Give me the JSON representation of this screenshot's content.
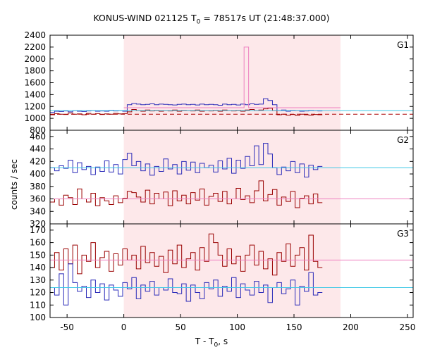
{
  "chart_data": {
    "type": "line",
    "title": {
      "prefix": "KONUS-WIND 021125 T",
      "subscript": "0",
      "suffix": " = 78517s UT (21:48:37.000)"
    },
    "xlabel": {
      "prefix": "T - T",
      "subscript": "0",
      "suffix": ", s"
    },
    "ylabel": "counts / sec",
    "xlim": [
      -65,
      255
    ],
    "x_ticks": [
      -50,
      0,
      50,
      100,
      150,
      200,
      250
    ],
    "x_tick_labels": [
      "-50",
      "0",
      "50",
      "100",
      "150",
      "200",
      "250"
    ],
    "shaded_interval": [
      0,
      191
    ],
    "bin_width": 4,
    "bin_start": -65,
    "colors": {
      "shade": "#fde8ea",
      "blue": "#2a2ab8",
      "darkred": "#990000",
      "cyan": "#3fc8e6",
      "pink": "#ee80c0",
      "darkred_dashed": "#aa0000"
    },
    "panels": [
      {
        "label": "G1",
        "ylim": [
          800,
          2400
        ],
        "y_ticks": [
          800,
          1000,
          1200,
          1400,
          1600,
          1800,
          2000,
          2200,
          2400
        ],
        "y_tick_labels": [
          "800",
          "1000",
          "1200",
          "1400",
          "1600",
          "1800",
          "2000",
          "2200",
          "2400"
        ],
        "series": [
          {
            "name": "",
            "color": "blue",
            "style": "step",
            "values": [
              1100,
              1120,
              1115,
              1125,
              1110,
              1130,
              1120,
              1115,
              1125,
              1130,
              1120,
              1125,
              1120,
              1135,
              1125,
              1130,
              1120,
              1230,
              1250,
              1240,
              1230,
              1235,
              1245,
              1230,
              1240,
              1235,
              1230,
              1225,
              1235,
              1240,
              1230,
              1235,
              1225,
              1240,
              1230,
              1235,
              1230,
              1220,
              1240,
              1230,
              1235,
              1225,
              1240,
              1230,
              1245,
              1235,
              1240,
              1330,
              1300,
              1230,
              1130,
              1140,
              1120,
              1135,
              1130,
              1120,
              1125,
              1135,
              1130,
              1125
            ]
          },
          {
            "name": "",
            "color": "darkred",
            "style": "step",
            "values": [
              1060,
              1080,
              1070,
              1065,
              1090,
              1070,
              1075,
              1060,
              1085,
              1070,
              1080,
              1065,
              1075,
              1070,
              1085,
              1075,
              1080,
              1110,
              1150,
              1130,
              1120,
              1140,
              1125,
              1135,
              1120,
              1130,
              1125,
              1140,
              1120,
              1135,
              1130,
              1125,
              1140,
              1120,
              1130,
              1125,
              1135,
              1120,
              1140,
              1130,
              1125,
              1135,
              1120,
              1140,
              1150,
              1130,
              1140,
              1160,
              1170,
              1130,
              1060,
              1070,
              1055,
              1065,
              1050,
              1070,
              1060,
              1055,
              1065,
              1060
            ]
          },
          {
            "name": "",
            "color": "cyan",
            "style": "line",
            "segments": [
              {
                "x": [
                  -65,
                  255
                ],
                "y": [
                  1130,
                  1130
                ]
              }
            ]
          },
          {
            "name": "",
            "color": "darkred_dashed",
            "style": "dashed",
            "segments": [
              {
                "x": [
                  -65,
                  255
                ],
                "y": [
                  1070,
                  1070
                ]
              }
            ]
          },
          {
            "name": "",
            "color": "pink",
            "style": "line",
            "segments": [
              {
                "x": [
                  0,
                  106,
                  106,
                  110,
                  110,
                  191
                ],
                "y": [
                  1180,
                  1180,
                  2200,
                  2200,
                  1180,
                  1180
                ]
              }
            ]
          }
        ]
      },
      {
        "label": "G2",
        "ylim": [
          320,
          470
        ],
        "y_ticks": [
          320,
          340,
          360,
          380,
          400,
          420,
          440,
          460
        ],
        "y_tick_labels": [
          "320",
          "340",
          "360",
          "380",
          "400",
          "420",
          "440",
          "460"
        ],
        "series": [
          {
            "name": "",
            "color": "blue",
            "style": "step",
            "values": [
              410,
              405,
              413,
              409,
              422,
              402,
              418,
              407,
              412,
              399,
              411,
              404,
              421,
              403,
              415,
              400,
              423,
              433,
              413,
              420,
              405,
              416,
              398,
              412,
              404,
              424,
              408,
              415,
              400,
              420,
              406,
              419,
              402,
              417,
              410,
              414,
              403,
              421,
              408,
              425,
              401,
              422,
              409,
              428,
              413,
              445,
              415,
              449,
              432,
              410,
              399,
              411,
              405,
              420,
              402,
              416,
              395,
              414,
              407,
              412
            ]
          },
          {
            "name": "",
            "color": "darkred",
            "style": "step",
            "values": [
              355,
              360,
              350,
              366,
              362,
              351,
              376,
              360,
              355,
              369,
              349,
              362,
              357,
              351,
              365,
              354,
              361,
              372,
              370,
              363,
              355,
              374,
              352,
              369,
              360,
              371,
              349,
              373,
              357,
              366,
              352,
              370,
              358,
              376,
              350,
              364,
              369,
              356,
              372,
              352,
              360,
              377,
              359,
              365,
              354,
              373,
              389,
              357,
              367,
              375,
              350,
              363,
              356,
              372,
              346,
              361,
              365,
              352,
              368,
              354
            ]
          },
          {
            "name": "",
            "color": "cyan",
            "style": "line",
            "segments": [
              {
                "x": [
                  -65,
                  255
                ],
                "y": [
                  410,
                  410
                ]
              }
            ]
          },
          {
            "name": "",
            "color": "pink",
            "style": "line",
            "segments": [
              {
                "x": [
                  -65,
                  255
                ],
                "y": [
                  360,
                  360
                ]
              }
            ]
          }
        ]
      },
      {
        "label": "G3",
        "ylim": [
          100,
          175
        ],
        "y_ticks": [
          100,
          110,
          120,
          130,
          140,
          150,
          160,
          170
        ],
        "y_tick_labels": [
          "100",
          "110",
          "120",
          "130",
          "140",
          "150",
          "160",
          "170"
        ],
        "series": [
          {
            "name": "",
            "color": "darkred",
            "style": "step",
            "values": [
              140,
              152,
              138,
              155,
              143,
              158,
              135,
              150,
              145,
              160,
              140,
              148,
              153,
              137,
              151,
              142,
              155,
              146,
              150,
              139,
              157,
              144,
              152,
              141,
              149,
              136,
              154,
              143,
              158,
              140,
              147,
              152,
              138,
              156,
              145,
              167,
              160,
              150,
              141,
              155,
              143,
              149,
              137,
              150,
              158,
              142,
              153,
              139,
              147,
              134,
              152,
              145,
              159,
              141,
              150,
              156,
              138,
              166,
              145,
              140
            ]
          },
          {
            "name": "",
            "color": "blue",
            "style": "step",
            "values": [
              124,
              118,
              135,
              110,
              143,
              128,
              121,
              125,
              116,
              130,
              120,
              127,
              114,
              126,
              122,
              117,
              128,
              123,
              132,
              115,
              126,
              121,
              129,
              118,
              124,
              122,
              131,
              120,
              119,
              127,
              113,
              126,
              120,
              115,
              128,
              123,
              130,
              117,
              125,
              121,
              132,
              116,
              127,
              122,
              118,
              129,
              120,
              126,
              112,
              124,
              128,
              119,
              123,
              130,
              110,
              125,
              121,
              136,
              118,
              120
            ]
          },
          {
            "name": "",
            "color": "cyan",
            "style": "line",
            "segments": [
              {
                "x": [
                  -65,
                  255
                ],
                "y": [
                  124,
                  124
                ]
              }
            ]
          },
          {
            "name": "",
            "color": "pink",
            "style": "line",
            "segments": [
              {
                "x": [
                  -65,
                  255
                ],
                "y": [
                  146,
                  146
                ]
              }
            ]
          }
        ]
      }
    ]
  }
}
